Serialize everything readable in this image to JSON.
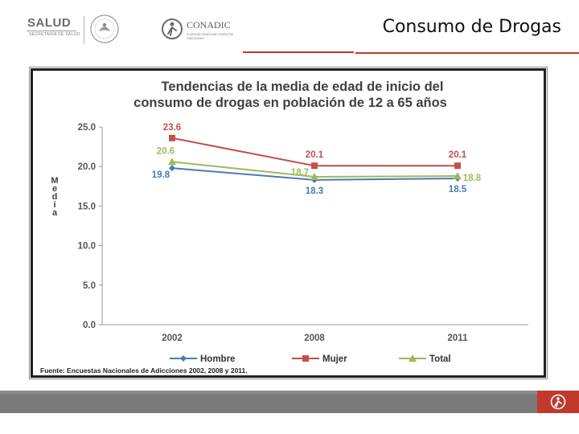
{
  "header": {
    "title": "Consumo de Drogas",
    "logo_salud": "SALUD",
    "logo_salud_sub": "SECRETARÍA DE SALUD",
    "logo_conadic": "CONADIC",
    "logo_conadic_sub": "Comisión Nacional contra las Adicciones"
  },
  "colors": {
    "accent_red": "#c0392b",
    "hombre": "#4a7ab5",
    "mujer": "#c0504d",
    "total": "#9bbb59"
  },
  "chart_data": {
    "type": "line",
    "title_line1": "Tendencias de la media de edad de inicio del",
    "title_line2": "consumo de drogas en población de 12 a 65 años",
    "ylabel": "Media",
    "xlabel": "",
    "ylim": [
      0,
      25
    ],
    "yticks": [
      "0.0",
      "5.0",
      "10.0",
      "15.0",
      "20.0",
      "25.0"
    ],
    "categories": [
      "2002",
      "2008",
      "2011"
    ],
    "series": [
      {
        "name": "Hombre",
        "values": [
          19.8,
          18.3,
          18.5
        ],
        "labels": [
          "19.8",
          "18.3",
          "18.5"
        ]
      },
      {
        "name": "Mujer",
        "values": [
          23.6,
          20.1,
          20.1
        ],
        "labels": [
          "23.6",
          "20.1",
          "20.1"
        ]
      },
      {
        "name": "Total",
        "values": [
          20.6,
          18.7,
          18.8
        ],
        "labels": [
          "20.6",
          "18.7",
          "18.8"
        ]
      }
    ],
    "legend_position": "bottom",
    "source": "Fuente: Encuestas Nacionales de Adicciones 2002, 2008 y 2011."
  }
}
